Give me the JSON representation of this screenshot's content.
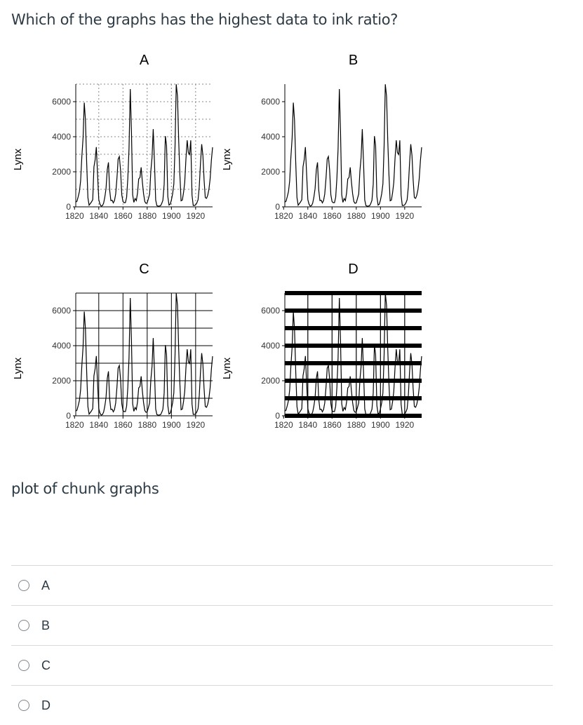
{
  "question": "Which of the graphs has the highest data to ink ratio?",
  "caption": "plot of chunk graphs",
  "options": [
    {
      "label": "A"
    },
    {
      "label": "B"
    },
    {
      "label": "C"
    },
    {
      "label": "D"
    }
  ],
  "chart_data": [
    {
      "type": "line",
      "title": "A",
      "ylabel": "Lynx",
      "xlabel": "",
      "x_ticks": [
        "1820",
        "1840",
        "1860",
        "1880",
        "1900",
        "1920"
      ],
      "y_ticks": [
        "0",
        "2000",
        "4000",
        "6000"
      ],
      "grid": "dotted",
      "x": [
        1821,
        1822,
        1823,
        1824,
        1825,
        1826,
        1827,
        1828,
        1829,
        1830,
        1831,
        1832,
        1833,
        1834,
        1835,
        1836,
        1837,
        1838,
        1839,
        1840,
        1841,
        1842,
        1843,
        1844,
        1845,
        1846,
        1847,
        1848,
        1849,
        1850,
        1851,
        1852,
        1853,
        1854,
        1855,
        1856,
        1857,
        1858,
        1859,
        1860,
        1861,
        1862,
        1863,
        1864,
        1865,
        1866,
        1867,
        1868,
        1869,
        1870,
        1871,
        1872,
        1873,
        1874,
        1875,
        1876,
        1877,
        1878,
        1879,
        1880,
        1881,
        1882,
        1883,
        1884,
        1885,
        1886,
        1887,
        1888,
        1889,
        1890,
        1891,
        1892,
        1893,
        1894,
        1895,
        1896,
        1897,
        1898,
        1899,
        1900,
        1901,
        1902,
        1903,
        1904,
        1905,
        1906,
        1907,
        1908,
        1909,
        1910,
        1911,
        1912,
        1913,
        1914,
        1915,
        1916,
        1917,
        1918,
        1919,
        1920,
        1921,
        1922,
        1923,
        1924,
        1925,
        1926,
        1927,
        1928,
        1929,
        1930,
        1931,
        1932,
        1933,
        1934
      ],
      "values": [
        269,
        321,
        585,
        871,
        1475,
        2821,
        3928,
        5943,
        4950,
        2577,
        523,
        98,
        184,
        279,
        409,
        2285,
        2685,
        3409,
        1824,
        409,
        151,
        45,
        68,
        213,
        546,
        1033,
        2129,
        2536,
        957,
        361,
        377,
        225,
        360,
        731,
        1638,
        2725,
        2871,
        2119,
        684,
        299,
        236,
        245,
        552,
        1623,
        3311,
        6721,
        4254,
        687,
        255,
        473,
        358,
        784,
        1594,
        1676,
        2251,
        1426,
        756,
        299,
        201,
        229,
        469,
        736,
        2042,
        2811,
        4431,
        2511,
        389,
        73,
        39,
        49,
        59,
        188,
        377,
        1292,
        4031,
        3495,
        587,
        105,
        153,
        387,
        758,
        1307,
        3465,
        6991,
        6313,
        3794,
        1836,
        345,
        382,
        808,
        1388,
        2713,
        3800,
        3091,
        2985,
        3790,
        674,
        81,
        80,
        108,
        229,
        399,
        1132,
        2432,
        3574,
        2935,
        1537,
        529,
        485,
        662,
        1000,
        1590,
        2657,
        3396
      ]
    },
    {
      "type": "line",
      "title": "B",
      "ylabel": "Lynx",
      "xlabel": "",
      "x_ticks": [
        "1820",
        "1840",
        "1860",
        "1880",
        "1900",
        "1920"
      ],
      "y_ticks": [
        "0",
        "2000",
        "4000",
        "6000"
      ],
      "grid": "none"
    },
    {
      "type": "line",
      "title": "C",
      "ylabel": "Lynx",
      "xlabel": "",
      "x_ticks": [
        "1820",
        "1840",
        "1860",
        "1880",
        "1900",
        "1920"
      ],
      "y_ticks": [
        "0",
        "2000",
        "4000",
        "6000"
      ],
      "grid": "solid thin"
    },
    {
      "type": "line",
      "title": "D",
      "ylabel": "Lynx",
      "xlabel": "",
      "x_ticks": [
        "1820",
        "1840",
        "1860",
        "1880",
        "1900",
        "1920"
      ],
      "y_ticks": [
        "0",
        "2000",
        "4000",
        "6000"
      ],
      "grid": "solid thick"
    }
  ]
}
